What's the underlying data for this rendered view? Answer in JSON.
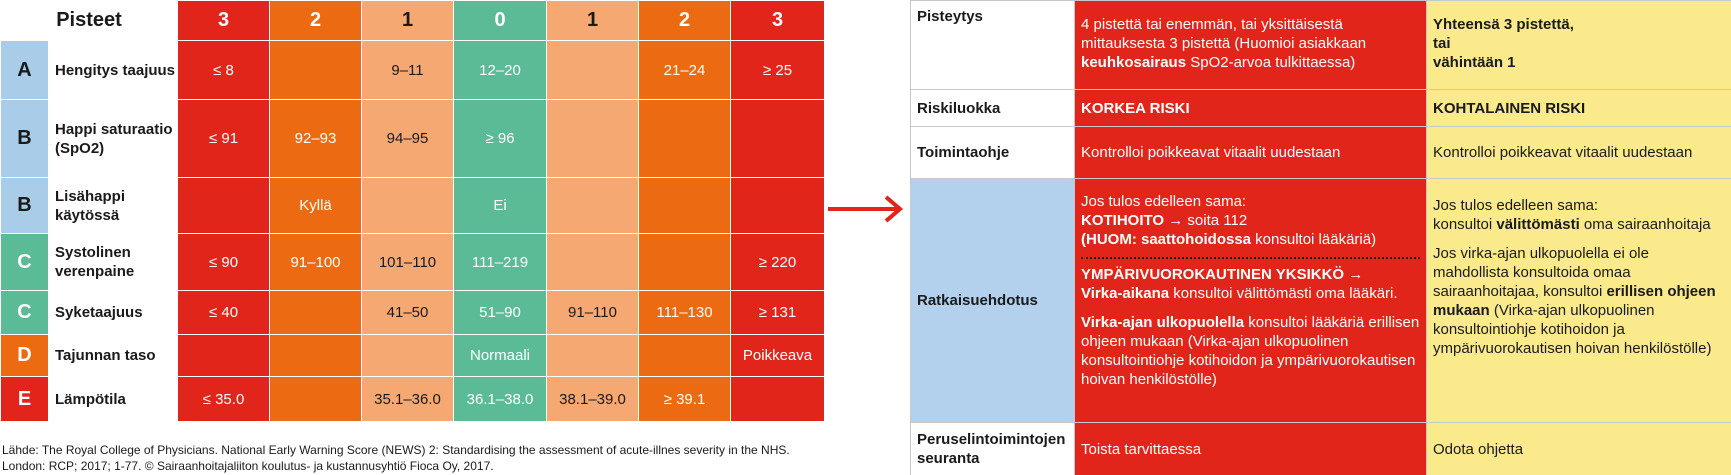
{
  "news": {
    "header": {
      "title": "Pisteet",
      "scores": [
        "3",
        "2",
        "1",
        "0",
        "1",
        "2",
        "3"
      ]
    },
    "rows": [
      {
        "letter": "A",
        "param": "Hengitys taajuus",
        "values": [
          "≤ 8",
          "",
          "9–11",
          "12–20",
          "",
          "21–24",
          "≥ 25"
        ]
      },
      {
        "letter": "B",
        "param": "Happi saturaatio (SpO2)",
        "values": [
          "≤ 91",
          "92–93",
          "94–95",
          "≥ 96",
          "",
          "",
          ""
        ]
      },
      {
        "letter": "B",
        "param": "Lisähappi käytössä",
        "values": [
          "",
          "Kyllä",
          "",
          "Ei",
          "",
          "",
          ""
        ]
      },
      {
        "letter": "C",
        "param": "Systolinen verenpaine",
        "values": [
          "≤ 90",
          "91–100",
          "101–110",
          "111–219",
          "",
          "",
          "≥ 220"
        ]
      },
      {
        "letter": "C",
        "param": "Syketaajuus",
        "values": [
          "≤ 40",
          "",
          "41–50",
          "51–90",
          "91–110",
          "111–130",
          "≥ 131"
        ]
      },
      {
        "letter": "D",
        "param": "Tajunnan taso",
        "values": [
          "",
          "",
          "",
          "Normaali",
          "",
          "",
          "Poikkeava"
        ]
      },
      {
        "letter": "E",
        "param": "Lämpötila",
        "values": [
          "≤ 35.0",
          "",
          "35.1–36.0",
          "36.1–38.0",
          "38.1–39.0",
          "≥ 39.1",
          ""
        ]
      }
    ],
    "colors": {
      "score3": "#e1251b",
      "score2": "#ec6b12",
      "score1": "#f5a872",
      "score0": "#5bbb96",
      "letterA": "#a9cde9",
      "letterC": "#5bbb96",
      "letterD": "#ec6b12",
      "letterE": "#e1251b"
    },
    "source": "Lähde: The Royal College of Physicians. National Early Warning Score (NEWS) 2: Standardising the assessment of acute-illnes severity in the NHS. London: RCP; 2017; 1-77. © Sairaanhoitajaliiton koulutus- ja kustannusyhtiö Fioca Oy, 2017."
  },
  "arrow": {
    "icon": "right-arrow-icon",
    "color": "#e1251b"
  },
  "action": {
    "colors": {
      "high": "#e1251b",
      "medium": "#faea8c",
      "label_blue": "#b3d1ec"
    },
    "pisteytys": {
      "label": "Pisteytys",
      "high_1": "4 pistettä tai enemmän, tai yksittäisestä mittauksesta 3 pistettä (Huomioi asiakkaan ",
      "high_bold": "keuhkosairaus",
      "high_2": " SpO2-arvoa tulkittaessa)",
      "medium_line1": "Yhteensä 3 pistettä,",
      "medium_line2": "tai",
      "medium_line3": "vähintään 1"
    },
    "riskiluokka": {
      "label": "Riskiluokka",
      "high": "KORKEA RISKI",
      "medium": "KOHTALAINEN RISKI"
    },
    "toimintaohje": {
      "label": "Toimintaohje",
      "high": "Kontrolloi poikkeavat vitaalit uudestaan",
      "medium": "Kontrolloi poikkeavat vitaalit uudestaan"
    },
    "ratkaisuehdotus": {
      "label": "Ratkaisuehdotus",
      "high_p1_line": "Jos tulos edelleen sama:",
      "high_p1_kotihoito": "KOTIHOITO →",
      "high_p1_soita": " soita 112",
      "high_p1_huom": "(HUOM: saattohoidossa",
      "high_p1_konsultoi": " konsultoi lääkäriä)",
      "high_p2_yksikko": "YMPÄRIVUOROKAUTINEN YKSIKKÖ →",
      "high_p2_virka": "Virka-aikana",
      "high_p2_rest": " konsultoi välittömästi oma lääkäri.",
      "high_p3_bold": "Virka-ajan ulkopuolella",
      "high_p3_rest": " konsultoi lääkäriä erillisen ohjeen mukaan (Virka-ajan ulkopuolinen konsultointiohje kotihoidon ja ympärivuorokautisen hoivan henkilöstölle)",
      "medium_p1_line": "Jos tulos edelleen sama:",
      "medium_p1_a": "konsultoi ",
      "medium_p1_bold": "välittömästi",
      "medium_p1_b": " oma sairaanhoitaja",
      "medium_p2_a": "Jos virka-ajan ulkopuolella ei ole mahdollista konsultoida omaa sairaanhoitajaa, konsultoi ",
      "medium_p2_bold": "erillisen ohjeen mukaan",
      "medium_p2_b": " (Virka-ajan ulkopuolinen konsultointiohje kotihoidon ja ympärivuorokautisen hoivan henkilöstölle)"
    },
    "seuranta": {
      "label": "Peruselintoimintojen seuranta",
      "high": "Toista tarvittaessa",
      "medium": "Odota ohjetta"
    }
  }
}
